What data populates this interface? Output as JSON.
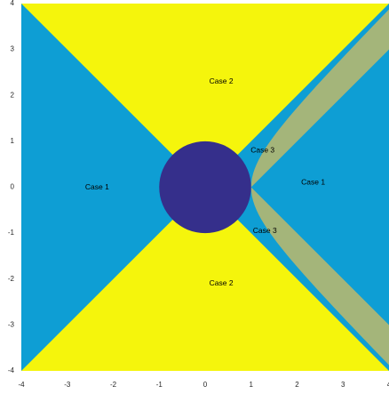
{
  "chart_data": {
    "type": "region map",
    "title": "",
    "xlabel": "",
    "ylabel": "",
    "xlim": [
      -4,
      4
    ],
    "ylim": [
      -4,
      4
    ],
    "x_ticks": [
      "-4",
      "-3",
      "-2",
      "-1",
      "0",
      "1",
      "2",
      "3",
      "4"
    ],
    "y_ticks": [
      "4",
      "3",
      "2",
      "1",
      "0",
      "-1",
      "-2",
      "-3",
      "-4"
    ],
    "grid": false,
    "regions": [
      {
        "name": "Case 1",
        "color": "#0e9ed4",
        "area": "left wedge between the diagonals x < -|y|"
      },
      {
        "name": "Case 1",
        "color": "#0e9ed4",
        "area": "right region beyond the hyperbolic band"
      },
      {
        "name": "Case 2",
        "color": "#f5f50c",
        "area": "top wedge between the diagonals y > |x|"
      },
      {
        "name": "Case 2",
        "color": "#f5f50c",
        "area": "bottom wedge between the diagonals y < -|x|"
      },
      {
        "name": "Case 3",
        "color": "#a4b57a",
        "area": "band between y = ±(x − 1) and x = sqrt(1 + y^2), x ≥ 1"
      },
      {
        "name": "disk",
        "color": "#352f8b",
        "area": "unit disk x^2 + y^2 ≤ 1"
      }
    ],
    "annotations": [
      {
        "text": "Case 2",
        "x": 0.35,
        "y": 2.3
      },
      {
        "text": "Case 3",
        "x": 1.25,
        "y": 0.8
      },
      {
        "text": "Case 1",
        "x": -2.35,
        "y": 0.0
      },
      {
        "text": "Case 1",
        "x": 2.35,
        "y": 0.1
      },
      {
        "text": "Case 3",
        "x": 1.3,
        "y": -0.95
      },
      {
        "text": "Case 2",
        "x": 0.35,
        "y": -2.1
      }
    ]
  }
}
